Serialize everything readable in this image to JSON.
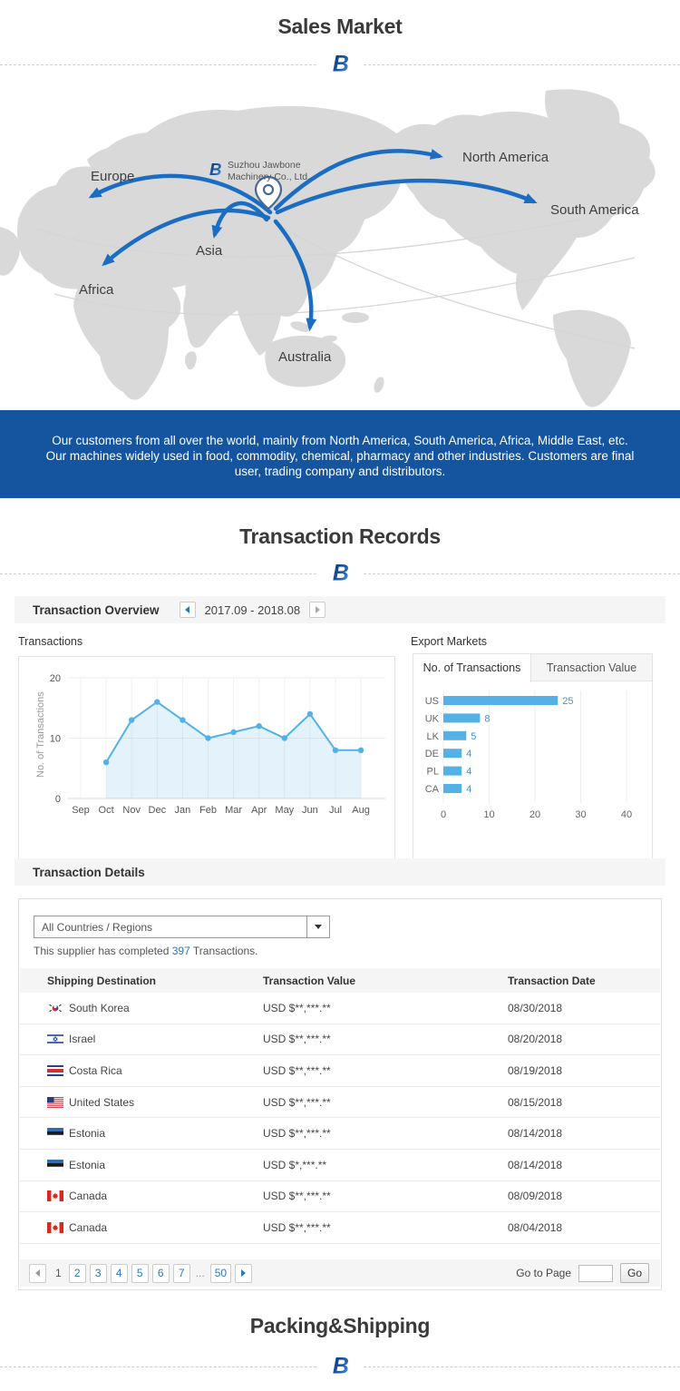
{
  "brand": {
    "letter": "B"
  },
  "sections": {
    "sales_market": "Sales Market",
    "transaction_records": "Transaction Records",
    "packing_shipping": "Packing&Shipping"
  },
  "map": {
    "company_line1": "Suzhou Jawbone",
    "company_line2": "Machinery Co., Ltd.",
    "labels": {
      "europe": "Europe",
      "asia": "Asia",
      "africa": "Africa",
      "australia": "Australia",
      "north_america": "North America",
      "south_america": "South America"
    }
  },
  "banner": {
    "text": "Our customers from all over the world, mainly from North America, South America, Africa, Middle East, etc. Our machines widely used in food, commodity, chemical, pharmacy and other industries. Customers are final user, trading company and distributors."
  },
  "overview": {
    "title": "Transaction Overview",
    "date_range": "2017.09 - 2018.08"
  },
  "charts": {
    "transactions_label": "Transactions",
    "export_markets_label": "Export Markets",
    "tabs": [
      "No. of Transactions",
      "Transaction Value"
    ]
  },
  "chart_data": [
    {
      "type": "area",
      "title": "Transactions",
      "ylabel": "No. of Transactions",
      "x": [
        "Sep",
        "Oct",
        "Nov",
        "Dec",
        "Jan",
        "Feb",
        "Mar",
        "Apr",
        "May",
        "Jun",
        "Jul",
        "Aug"
      ],
      "values": [
        null,
        6,
        13,
        16,
        13,
        10,
        11,
        12,
        10,
        14,
        8,
        8
      ],
      "yticks": [
        0,
        10,
        20
      ],
      "ylim": [
        0,
        20
      ],
      "grid": true,
      "line_color": "#54b1e5"
    },
    {
      "type": "bar",
      "title": "Export Markets",
      "orientation": "horizontal",
      "categories": [
        "US",
        "UK",
        "LK",
        "DE",
        "PL",
        "CA"
      ],
      "values": [
        25,
        8,
        5,
        4,
        4,
        4
      ],
      "xticks": [
        0,
        10,
        20,
        30,
        40
      ],
      "xlim": [
        0,
        40
      ],
      "grid": true,
      "bar_color": "#54b1e5",
      "value_label_color": "#4a90d2"
    }
  ],
  "details": {
    "title": "Transaction Details",
    "filter_value": "All Countries / Regions",
    "summary": {
      "prefix": "This supplier has completed ",
      "count": "397",
      "suffix": " Transactions."
    },
    "columns": [
      "Shipping Destination",
      "Transaction Value",
      "Transaction Date"
    ],
    "rows": [
      {
        "country": "South Korea",
        "flag": "kr",
        "value": "USD $**,***.**",
        "date": "08/30/2018"
      },
      {
        "country": "Israel",
        "flag": "il",
        "value": "USD $**,***.**",
        "date": "08/20/2018"
      },
      {
        "country": "Costa Rica",
        "flag": "cr",
        "value": "USD $**,***.**",
        "date": "08/19/2018"
      },
      {
        "country": "United States",
        "flag": "us",
        "value": "USD $**,***.**",
        "date": "08/15/2018"
      },
      {
        "country": "Estonia",
        "flag": "ee",
        "value": "USD $**,***.**",
        "date": "08/14/2018"
      },
      {
        "country": "Estonia",
        "flag": "ee",
        "value": "USD $*,***.**",
        "date": "08/14/2018"
      },
      {
        "country": "Canada",
        "flag": "ca",
        "value": "USD $**,***.**",
        "date": "08/09/2018"
      },
      {
        "country": "Canada",
        "flag": "ca",
        "value": "USD $**,***.**",
        "date": "08/04/2018"
      }
    ],
    "pagination": {
      "current": "1",
      "pages": [
        "2",
        "3",
        "4",
        "5",
        "6",
        "7"
      ],
      "ellipsis": "...",
      "last": "50",
      "goto_label": "Go to Page",
      "go_label": "Go",
      "input_value": ""
    }
  },
  "colors": {
    "accent_blue": "#1a6dc2",
    "banner_bg": "#15549e",
    "chart_blue": "#54b1e5",
    "link_blue": "#2e77b8"
  }
}
